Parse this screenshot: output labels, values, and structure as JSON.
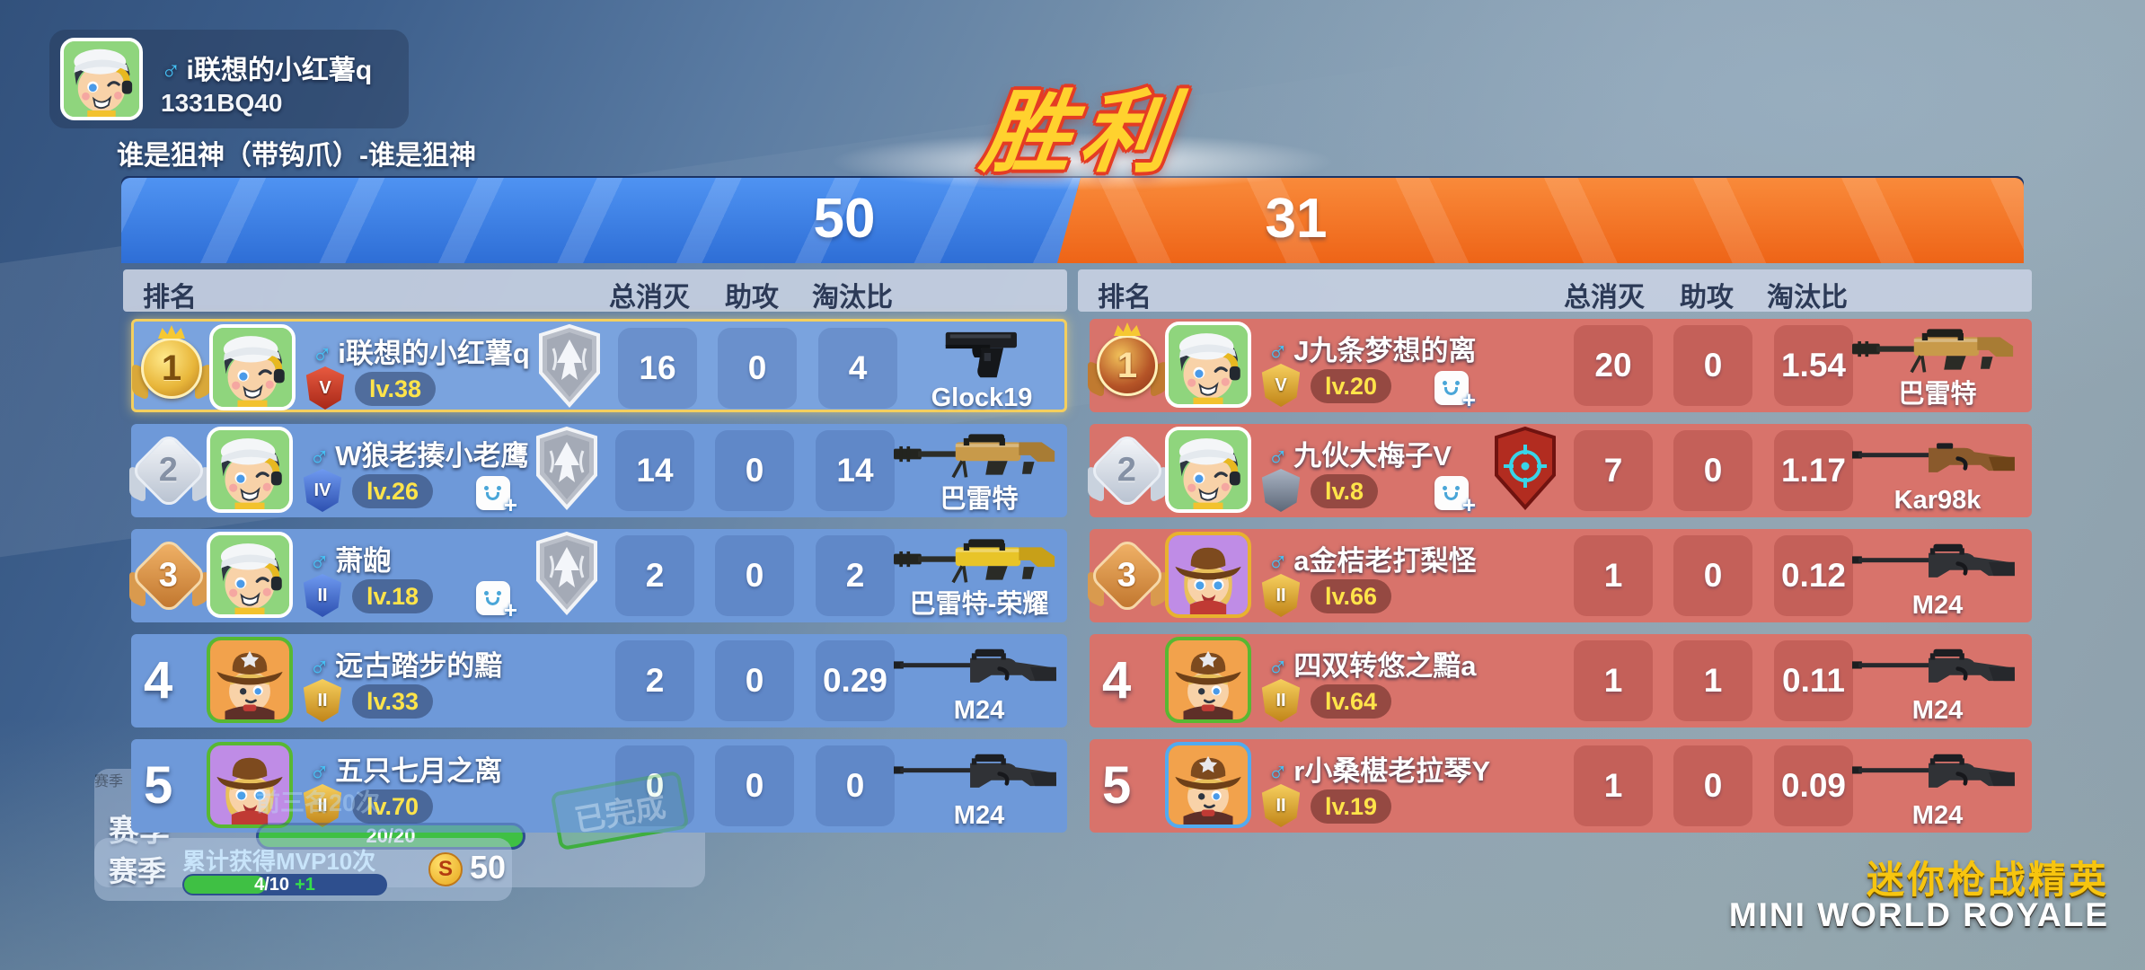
{
  "player_card": {
    "gender": "♂",
    "name": "i联想的小红薯q",
    "id": "1331BQ40"
  },
  "mode_title": "谁是狙神（带钩爪）-谁是狙神",
  "victory_label": "胜利",
  "columns": {
    "rank": "排名",
    "kills": "总消灭",
    "assists": "助攻",
    "ratio": "淘汰比"
  },
  "colors": {
    "team_blue": "#2e6ed6",
    "team_orange": "#ee6417",
    "row_blue": "#6e99d9",
    "row_red": "#d8736b",
    "highlight_gold": "#f4cf5e",
    "victory_yellow": "#ffd22e",
    "level_yellow": "#ffe44a"
  },
  "teams": [
    {
      "side": "blue",
      "score": "50",
      "players": [
        {
          "rank": "1",
          "gender": "♂",
          "name": "i联想的小红薯q",
          "badge": "V",
          "badge_color": "red",
          "level": "lv.38",
          "friend": false,
          "shield": "silver",
          "kills": "16",
          "assists": "0",
          "ratio": "4",
          "weapon": "Glock19",
          "weapon_type": "pistol",
          "avatar": "boy",
          "frame": "white",
          "highlighted": true
        },
        {
          "rank": "2",
          "gender": "♂",
          "name": "W狼老揍小老鹰",
          "badge": "IV",
          "badge_color": "blue",
          "level": "lv.26",
          "friend": true,
          "shield": "silver",
          "kills": "14",
          "assists": "0",
          "ratio": "14",
          "weapon": "巴雷特",
          "weapon_type": "barrett_gold",
          "avatar": "boy",
          "frame": "white",
          "highlighted": false
        },
        {
          "rank": "3",
          "gender": "♂",
          "name": "萧龅",
          "badge": "II",
          "badge_color": "blue",
          "level": "lv.18",
          "friend": true,
          "shield": "silver",
          "kills": "2",
          "assists": "0",
          "ratio": "2",
          "weapon": "巴雷特-荣耀",
          "weapon_type": "barrett_yellow",
          "avatar": "boy",
          "frame": "white",
          "highlighted": false
        },
        {
          "rank": "4",
          "gender": "♂",
          "name": "远古踏步的黯",
          "badge": "II",
          "badge_color": "gold",
          "level": "lv.33",
          "friend": false,
          "shield": null,
          "kills": "2",
          "assists": "0",
          "ratio": "0.29",
          "weapon": "M24",
          "weapon_type": "m24",
          "avatar": "cowboy",
          "frame": "green",
          "highlighted": false
        },
        {
          "rank": "5",
          "gender": "♂",
          "name": "五只七月之离",
          "badge": "II",
          "badge_color": "gold",
          "level": "lv.70",
          "friend": false,
          "shield": null,
          "kills": "0",
          "assists": "0",
          "ratio": "0",
          "weapon": "M24",
          "weapon_type": "m24",
          "avatar": "cowgirl",
          "frame": "green",
          "highlighted": false
        }
      ]
    },
    {
      "side": "red",
      "score": "31",
      "players": [
        {
          "rank": "1",
          "gender": "♂",
          "name": "J九条梦想的离",
          "badge": "V",
          "badge_color": "gold",
          "level": "lv.20",
          "friend": true,
          "shield": null,
          "kills": "20",
          "assists": "0",
          "ratio": "1.54",
          "weapon": "巴雷特",
          "weapon_type": "barrett_gold",
          "avatar": "boy",
          "frame": "white",
          "highlighted": false
        },
        {
          "rank": "2",
          "gender": "♂",
          "name": "九伙大梅子V",
          "badge": "",
          "badge_color": "gray",
          "level": "lv.8",
          "friend": true,
          "shield": "red",
          "kills": "7",
          "assists": "0",
          "ratio": "1.17",
          "weapon": "Kar98k",
          "weapon_type": "kar98k",
          "avatar": "boy",
          "frame": "white",
          "highlighted": false
        },
        {
          "rank": "3",
          "gender": "♂",
          "name": "a金桔老打梨怪",
          "badge": "II",
          "badge_color": "gold",
          "level": "lv.66",
          "friend": false,
          "shield": null,
          "kills": "1",
          "assists": "0",
          "ratio": "0.12",
          "weapon": "M24",
          "weapon_type": "m24",
          "avatar": "cowgirl",
          "frame": "gold",
          "highlighted": false
        },
        {
          "rank": "4",
          "gender": "♂",
          "name": "四双转悠之黯a",
          "badge": "II",
          "badge_color": "gold",
          "level": "lv.64",
          "friend": false,
          "shield": null,
          "kills": "1",
          "assists": "1",
          "ratio": "0.11",
          "weapon": "M24",
          "weapon_type": "m24",
          "avatar": "cowboy",
          "frame": "green",
          "highlighted": false
        },
        {
          "rank": "5",
          "gender": "♂",
          "name": "r小桑椹老拉琴Y",
          "badge": "II",
          "badge_color": "gold",
          "level": "lv.19",
          "friend": false,
          "shield": null,
          "kills": "1",
          "assists": "0",
          "ratio": "0.09",
          "weapon": "M24",
          "weapon_type": "m24",
          "avatar": "cowboy",
          "frame": "blue",
          "highlighted": false
        }
      ]
    }
  ],
  "season_tasks": [
    {
      "label": "赛季",
      "title": "前三名20次",
      "progress": "20/20",
      "status": "已完成"
    },
    {
      "label": "赛季",
      "title": "累计获得MVP10次",
      "progress": "4/10",
      "bonus": "+1",
      "coin": "S",
      "reward": "50"
    }
  ],
  "branding": {
    "cn": "迷你枪战精英",
    "en": "MINI WORLD ROYALE"
  }
}
